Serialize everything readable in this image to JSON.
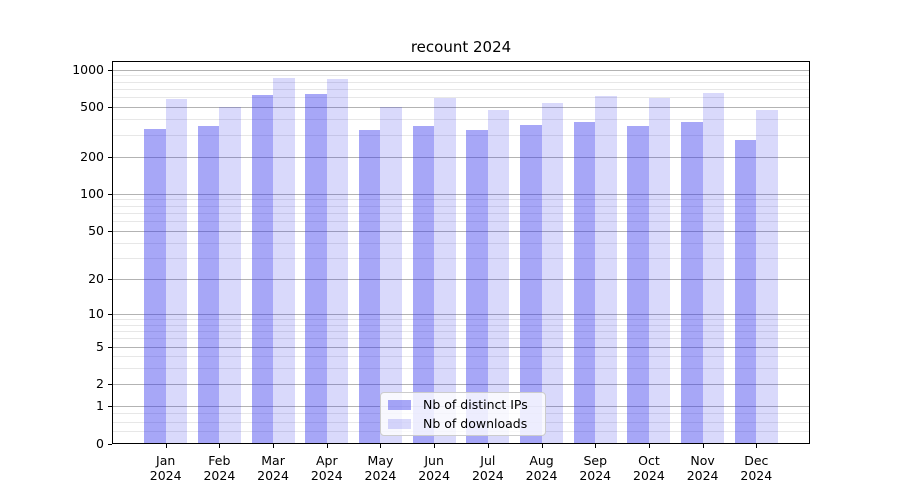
{
  "chart_data": {
    "type": "bar",
    "title": "recount 2024",
    "categories": [
      "Jan",
      "Feb",
      "Mar",
      "Apr",
      "May",
      "Jun",
      "Jul",
      "Aug",
      "Sep",
      "Oct",
      "Nov",
      "Dec"
    ],
    "category_year_line": "2024",
    "series": [
      {
        "name": "Nb of distinct IPs",
        "color": "rgba(45,45,235,0.42)",
        "values": [
          335,
          355,
          625,
          635,
          330,
          355,
          330,
          360,
          380,
          355,
          380,
          270
        ]
      },
      {
        "name": "Nb of downloads",
        "color": "rgba(45,45,235,0.18)",
        "values": [
          580,
          505,
          855,
          840,
          500,
          590,
          475,
          540,
          620,
          590,
          655,
          475
        ]
      }
    ],
    "y_scale": "log1p",
    "ylim": [
      0,
      1175
    ],
    "y_ticks": [
      0,
      1,
      2,
      5,
      10,
      20,
      50,
      100,
      200,
      500,
      1000
    ],
    "grid": true,
    "legend_position": "lower center"
  },
  "appearance": {
    "grid_major_color": "#b3b3b3",
    "grid_minor_color": "#e7e7e7",
    "spine_color": "#000000",
    "background_color": "#ffffff"
  }
}
